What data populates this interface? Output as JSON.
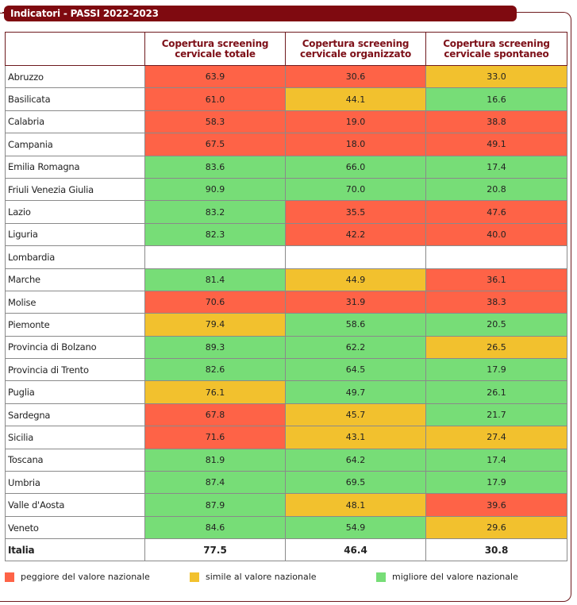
{
  "title": "Indicatori - PASSI 2022-2023",
  "columns": [
    "",
    "Copertura screening cervicale totale",
    "Copertura screening cervicale organizzato",
    "Copertura screening cervicale spontaneo"
  ],
  "colors": {
    "worse": "#fe6347",
    "similar": "#f2c12e",
    "better": "#77dd77",
    "title_bg": "#7f0a10",
    "header_text": "#7d1018"
  },
  "rows": [
    {
      "region": "Abruzzo",
      "values": [
        "63.9",
        "30.6",
        "33.0"
      ],
      "status": [
        "worse",
        "worse",
        "similar"
      ]
    },
    {
      "region": "Basilicata",
      "values": [
        "61.0",
        "44.1",
        "16.6"
      ],
      "status": [
        "worse",
        "similar",
        "better"
      ]
    },
    {
      "region": "Calabria",
      "values": [
        "58.3",
        "19.0",
        "38.8"
      ],
      "status": [
        "worse",
        "worse",
        "worse"
      ]
    },
    {
      "region": "Campania",
      "values": [
        "67.5",
        "18.0",
        "49.1"
      ],
      "status": [
        "worse",
        "worse",
        "worse"
      ]
    },
    {
      "region": "Emilia Romagna",
      "values": [
        "83.6",
        "66.0",
        "17.4"
      ],
      "status": [
        "better",
        "better",
        "better"
      ]
    },
    {
      "region": "Friuli Venezia Giulia",
      "values": [
        "90.9",
        "70.0",
        "20.8"
      ],
      "status": [
        "better",
        "better",
        "better"
      ]
    },
    {
      "region": "Lazio",
      "values": [
        "83.2",
        "35.5",
        "47.6"
      ],
      "status": [
        "better",
        "worse",
        "worse"
      ]
    },
    {
      "region": "Liguria",
      "values": [
        "82.3",
        "42.2",
        "40.0"
      ],
      "status": [
        "better",
        "worse",
        "worse"
      ]
    },
    {
      "region": "Lombardia",
      "values": [
        "",
        "",
        ""
      ],
      "status": [
        "none",
        "none",
        "none"
      ]
    },
    {
      "region": "Marche",
      "values": [
        "81.4",
        "44.9",
        "36.1"
      ],
      "status": [
        "better",
        "similar",
        "worse"
      ]
    },
    {
      "region": "Molise",
      "values": [
        "70.6",
        "31.9",
        "38.3"
      ],
      "status": [
        "worse",
        "worse",
        "worse"
      ]
    },
    {
      "region": "Piemonte",
      "values": [
        "79.4",
        "58.6",
        "20.5"
      ],
      "status": [
        "similar",
        "better",
        "better"
      ]
    },
    {
      "region": "Provincia di Bolzano",
      "values": [
        "89.3",
        "62.2",
        "26.5"
      ],
      "status": [
        "better",
        "better",
        "similar"
      ]
    },
    {
      "region": "Provincia di Trento",
      "values": [
        "82.6",
        "64.5",
        "17.9"
      ],
      "status": [
        "better",
        "better",
        "better"
      ]
    },
    {
      "region": "Puglia",
      "values": [
        "76.1",
        "49.7",
        "26.1"
      ],
      "status": [
        "similar",
        "better",
        "better"
      ]
    },
    {
      "region": "Sardegna",
      "values": [
        "67.8",
        "45.7",
        "21.7"
      ],
      "status": [
        "worse",
        "similar",
        "better"
      ]
    },
    {
      "region": "Sicilia",
      "values": [
        "71.6",
        "43.1",
        "27.4"
      ],
      "status": [
        "worse",
        "similar",
        "similar"
      ]
    },
    {
      "region": "Toscana",
      "values": [
        "81.9",
        "64.2",
        "17.4"
      ],
      "status": [
        "better",
        "better",
        "better"
      ]
    },
    {
      "region": "Umbria",
      "values": [
        "87.4",
        "69.5",
        "17.9"
      ],
      "status": [
        "better",
        "better",
        "better"
      ]
    },
    {
      "region": "Valle d'Aosta",
      "values": [
        "87.9",
        "48.1",
        "39.6"
      ],
      "status": [
        "better",
        "similar",
        "worse"
      ]
    },
    {
      "region": "Veneto",
      "values": [
        "84.6",
        "54.9",
        "29.6"
      ],
      "status": [
        "better",
        "better",
        "similar"
      ]
    }
  ],
  "total": {
    "region": "Italia",
    "values": [
      "77.5",
      "46.4",
      "30.8"
    ]
  },
  "legend": [
    {
      "key": "worse",
      "label": "peggiore del valore nazionale"
    },
    {
      "key": "similar",
      "label": "simile al valore nazionale"
    },
    {
      "key": "better",
      "label": "migliore del valore nazionale"
    }
  ]
}
